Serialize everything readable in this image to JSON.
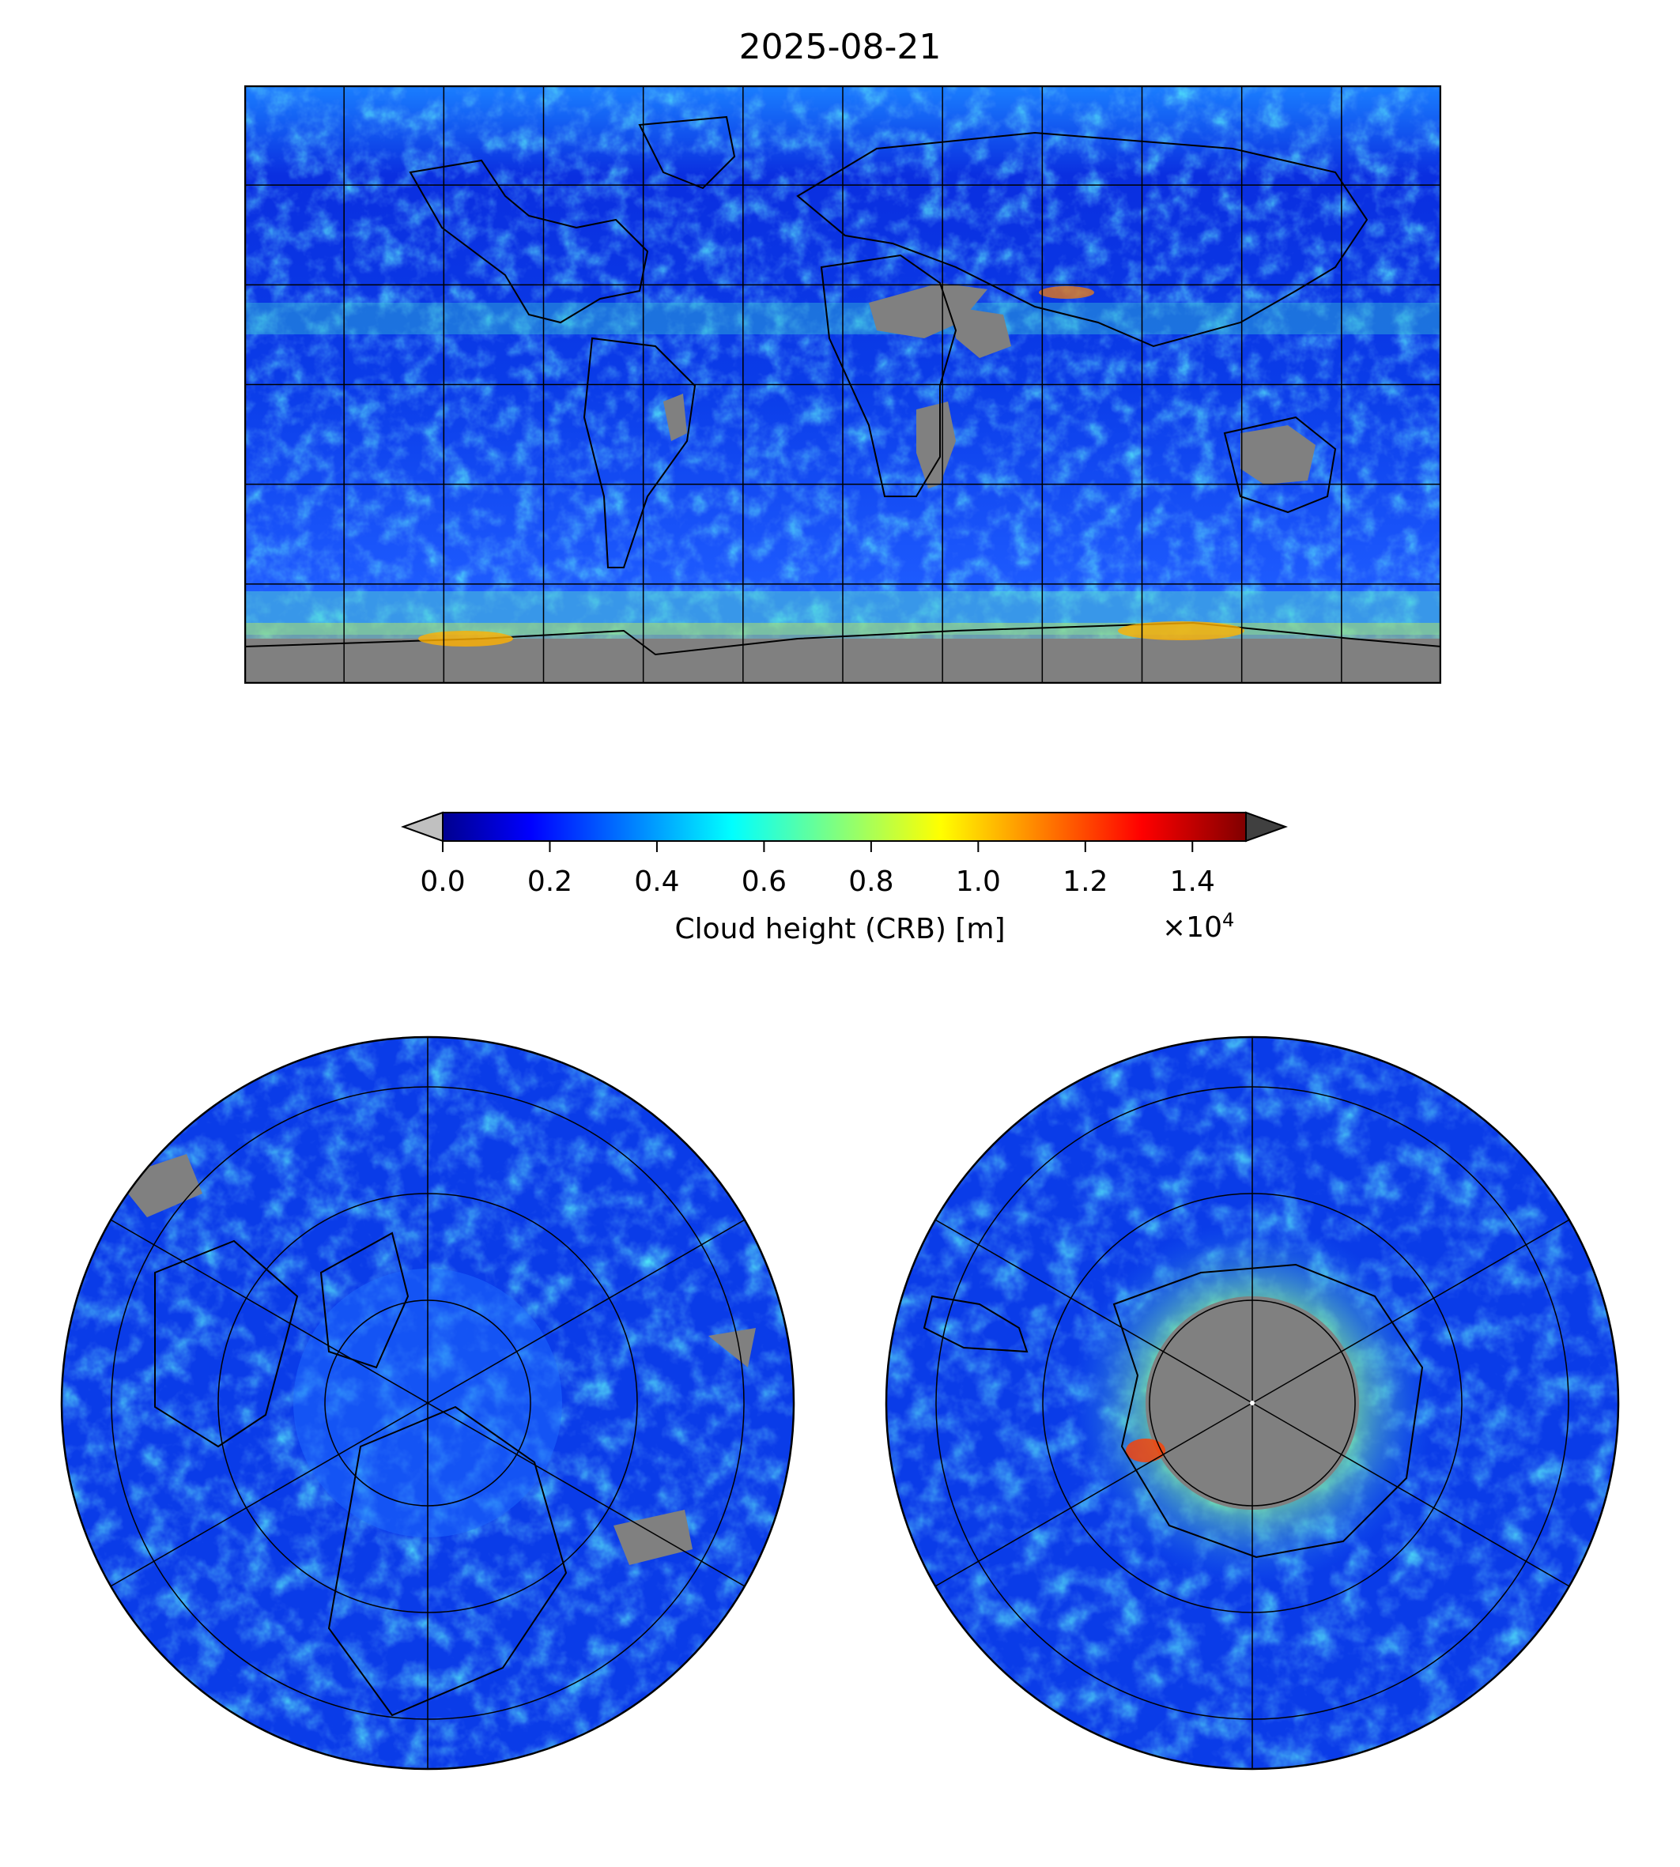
{
  "title": "2025-08-21",
  "colorbar": {
    "label": "Cloud height (CRB) [m]",
    "multiplier_base": "×10",
    "multiplier_exp": "4",
    "ticks": [
      {
        "value": 0.0,
        "label": "0.0"
      },
      {
        "value": 0.2,
        "label": "0.2"
      },
      {
        "value": 0.4,
        "label": "0.4"
      },
      {
        "value": 0.6,
        "label": "0.6"
      },
      {
        "value": 0.8,
        "label": "0.8"
      },
      {
        "value": 1.0,
        "label": "1.0"
      },
      {
        "value": 1.2,
        "label": "1.2"
      },
      {
        "value": 1.4,
        "label": "1.4"
      }
    ],
    "range": [
      0.0,
      1.5
    ],
    "colormap": "jet",
    "under_color": "#c0c0c0",
    "over_color": "#404040",
    "nodata_color": "#808080"
  },
  "maps": {
    "global": {
      "projection": "equirectangular",
      "coastline_color": "#000000"
    },
    "north_polar": {
      "projection": "north-polar-stereographic"
    },
    "south_polar": {
      "projection": "south-polar-stereographic"
    }
  }
}
